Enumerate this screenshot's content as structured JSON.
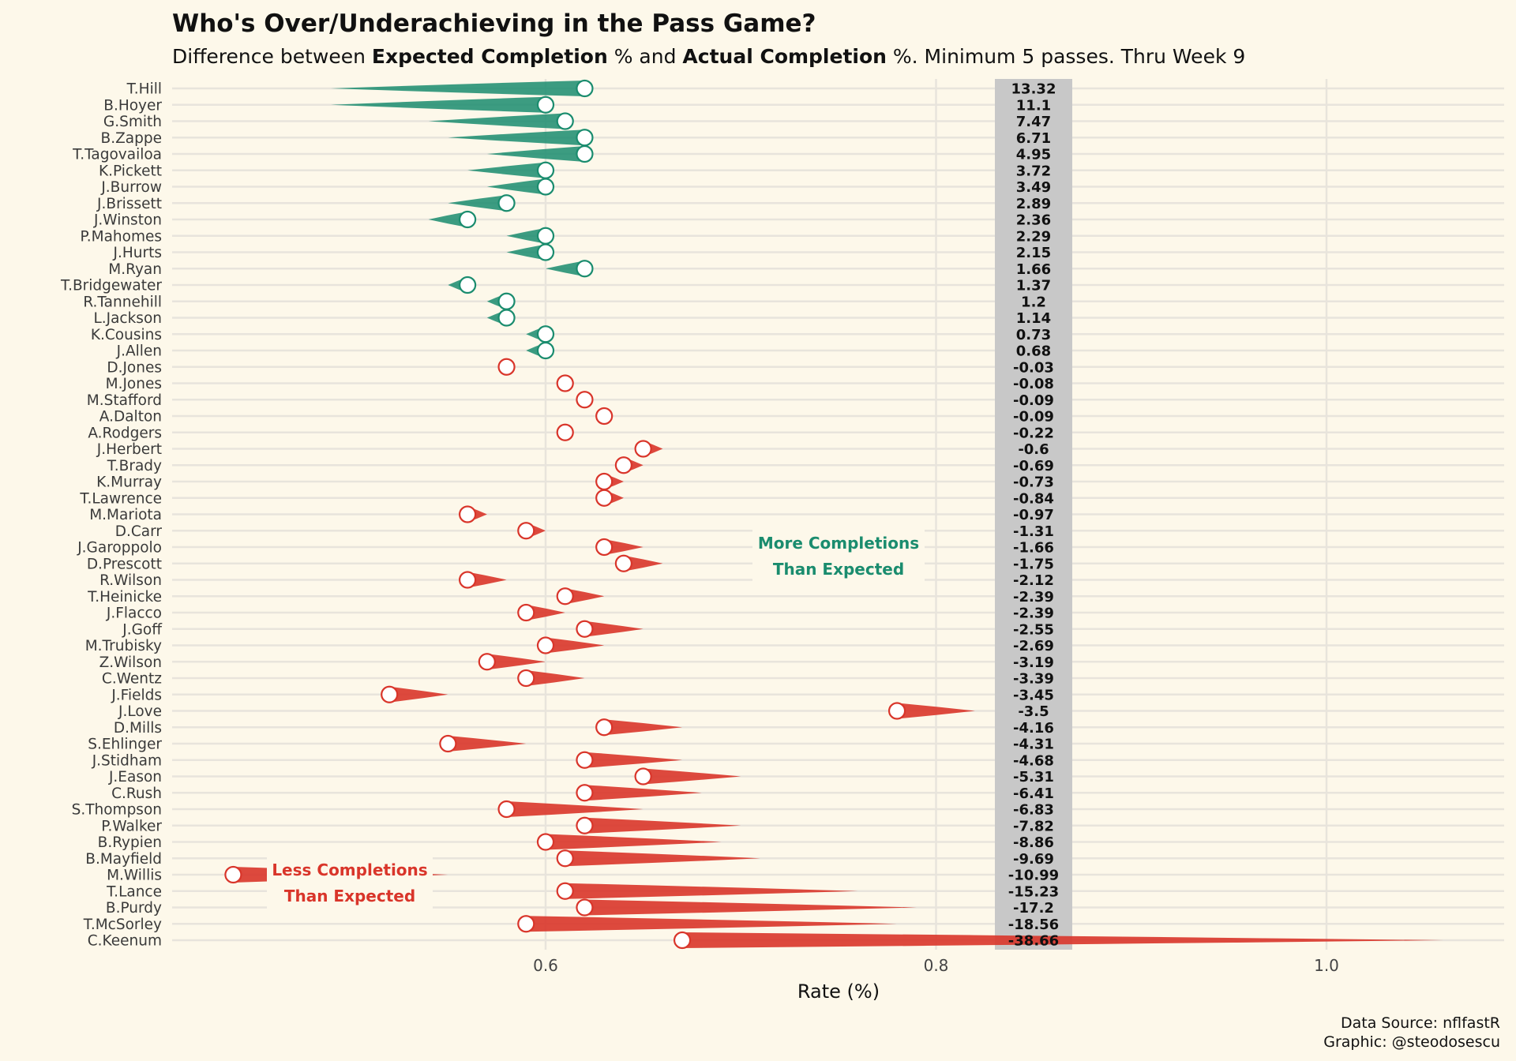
{
  "title": "Who's Over/Underachieving in the Pass Game?",
  "subtitle": {
    "part1": "Difference between ",
    "bold1": "Expected Completion",
    "part2": " % and ",
    "bold2": "Actual Completion",
    "part3": " %. Minimum 5 passes. Thru Week 9"
  },
  "caption": {
    "line1": "Data Source: nflfastR",
    "line2": "Graphic: @steodosescu"
  },
  "annotations": {
    "over_line1": "More Completions",
    "over_line2": "Than Expected",
    "under_line1": "Less Completions",
    "under_line2": "Than Expected"
  },
  "colors": {
    "over": "#1a8c6e",
    "under": "#d9352a",
    "background": "#fdf8ea",
    "diff_panel": "#c8c8c8",
    "grid": "#e8e4dc"
  },
  "chart_data": {
    "type": "scatter",
    "xlabel": "Rate (%)",
    "xlim": [
      0.405,
      1.09
    ],
    "xticks": [
      "0.6",
      "0.8",
      "1.0"
    ],
    "xtick_values": [
      0.6,
      0.8,
      1.0
    ],
    "series_note": "each player: circle at actual completion rate, tapered tail to expected completion rate",
    "players": [
      {
        "name": "T.Hill",
        "actual": 0.62,
        "expected": 0.49,
        "diff": "13.32"
      },
      {
        "name": "B.Hoyer",
        "actual": 0.6,
        "expected": 0.49,
        "diff": "11.1"
      },
      {
        "name": "G.Smith",
        "actual": 0.61,
        "expected": 0.54,
        "diff": "7.47"
      },
      {
        "name": "B.Zappe",
        "actual": 0.62,
        "expected": 0.55,
        "diff": "6.71"
      },
      {
        "name": "T.Tagovailoa",
        "actual": 0.62,
        "expected": 0.57,
        "diff": "4.95"
      },
      {
        "name": "K.Pickett",
        "actual": 0.6,
        "expected": 0.56,
        "diff": "3.72"
      },
      {
        "name": "J.Burrow",
        "actual": 0.6,
        "expected": 0.57,
        "diff": "3.49"
      },
      {
        "name": "J.Brissett",
        "actual": 0.58,
        "expected": 0.55,
        "diff": "2.89"
      },
      {
        "name": "J.Winston",
        "actual": 0.56,
        "expected": 0.54,
        "diff": "2.36"
      },
      {
        "name": "P.Mahomes",
        "actual": 0.6,
        "expected": 0.58,
        "diff": "2.29"
      },
      {
        "name": "J.Hurts",
        "actual": 0.6,
        "expected": 0.58,
        "diff": "2.15"
      },
      {
        "name": "M.Ryan",
        "actual": 0.62,
        "expected": 0.6,
        "diff": "1.66"
      },
      {
        "name": "T.Bridgewater",
        "actual": 0.56,
        "expected": 0.55,
        "diff": "1.37"
      },
      {
        "name": "R.Tannehill",
        "actual": 0.58,
        "expected": 0.57,
        "diff": "1.2"
      },
      {
        "name": "L.Jackson",
        "actual": 0.58,
        "expected": 0.57,
        "diff": "1.14"
      },
      {
        "name": "K.Cousins",
        "actual": 0.6,
        "expected": 0.59,
        "diff": "0.73"
      },
      {
        "name": "J.Allen",
        "actual": 0.6,
        "expected": 0.59,
        "diff": "0.68"
      },
      {
        "name": "D.Jones",
        "actual": 0.58,
        "expected": 0.58,
        "diff": "-0.03"
      },
      {
        "name": "M.Jones",
        "actual": 0.61,
        "expected": 0.61,
        "diff": "-0.08"
      },
      {
        "name": "M.Stafford",
        "actual": 0.62,
        "expected": 0.62,
        "diff": "-0.09"
      },
      {
        "name": "A.Dalton",
        "actual": 0.63,
        "expected": 0.63,
        "diff": "-0.09"
      },
      {
        "name": "A.Rodgers",
        "actual": 0.61,
        "expected": 0.61,
        "diff": "-0.22"
      },
      {
        "name": "J.Herbert",
        "actual": 0.65,
        "expected": 0.66,
        "diff": "-0.6"
      },
      {
        "name": "T.Brady",
        "actual": 0.64,
        "expected": 0.65,
        "diff": "-0.69"
      },
      {
        "name": "K.Murray",
        "actual": 0.63,
        "expected": 0.64,
        "diff": "-0.73"
      },
      {
        "name": "T.Lawrence",
        "actual": 0.63,
        "expected": 0.64,
        "diff": "-0.84"
      },
      {
        "name": "M.Mariota",
        "actual": 0.56,
        "expected": 0.57,
        "diff": "-0.97"
      },
      {
        "name": "D.Carr",
        "actual": 0.59,
        "expected": 0.6,
        "diff": "-1.31"
      },
      {
        "name": "J.Garoppolo",
        "actual": 0.63,
        "expected": 0.65,
        "diff": "-1.66"
      },
      {
        "name": "D.Prescott",
        "actual": 0.64,
        "expected": 0.66,
        "diff": "-1.75"
      },
      {
        "name": "R.Wilson",
        "actual": 0.56,
        "expected": 0.58,
        "diff": "-2.12"
      },
      {
        "name": "T.Heinicke",
        "actual": 0.61,
        "expected": 0.63,
        "diff": "-2.39"
      },
      {
        "name": "J.Flacco",
        "actual": 0.59,
        "expected": 0.61,
        "diff": "-2.39"
      },
      {
        "name": "J.Goff",
        "actual": 0.62,
        "expected": 0.65,
        "diff": "-2.55"
      },
      {
        "name": "M.Trubisky",
        "actual": 0.6,
        "expected": 0.63,
        "diff": "-2.69"
      },
      {
        "name": "Z.Wilson",
        "actual": 0.57,
        "expected": 0.6,
        "diff": "-3.19"
      },
      {
        "name": "C.Wentz",
        "actual": 0.59,
        "expected": 0.62,
        "diff": "-3.39"
      },
      {
        "name": "J.Fields",
        "actual": 0.52,
        "expected": 0.55,
        "diff": "-3.45"
      },
      {
        "name": "J.Love",
        "actual": 0.78,
        "expected": 0.82,
        "diff": "-3.5"
      },
      {
        "name": "D.Mills",
        "actual": 0.63,
        "expected": 0.67,
        "diff": "-4.16"
      },
      {
        "name": "S.Ehlinger",
        "actual": 0.55,
        "expected": 0.59,
        "diff": "-4.31"
      },
      {
        "name": "J.Stidham",
        "actual": 0.62,
        "expected": 0.67,
        "diff": "-4.68"
      },
      {
        "name": "J.Eason",
        "actual": 0.65,
        "expected": 0.7,
        "diff": "-5.31"
      },
      {
        "name": "C.Rush",
        "actual": 0.62,
        "expected": 0.68,
        "diff": "-6.41"
      },
      {
        "name": "S.Thompson",
        "actual": 0.58,
        "expected": 0.65,
        "diff": "-6.83"
      },
      {
        "name": "P.Walker",
        "actual": 0.62,
        "expected": 0.7,
        "diff": "-7.82"
      },
      {
        "name": "B.Rypien",
        "actual": 0.6,
        "expected": 0.69,
        "diff": "-8.86"
      },
      {
        "name": "B.Mayfield",
        "actual": 0.61,
        "expected": 0.71,
        "diff": "-9.69"
      },
      {
        "name": "M.Willis",
        "actual": 0.44,
        "expected": 0.55,
        "diff": "-10.99"
      },
      {
        "name": "T.Lance",
        "actual": 0.61,
        "expected": 0.76,
        "diff": "-15.23"
      },
      {
        "name": "B.Purdy",
        "actual": 0.62,
        "expected": 0.79,
        "diff": "-17.2"
      },
      {
        "name": "T.McSorley",
        "actual": 0.59,
        "expected": 0.78,
        "diff": "-18.56"
      },
      {
        "name": "C.Keenum",
        "actual": 0.67,
        "expected": 1.06,
        "diff": "-38.66"
      }
    ]
  }
}
